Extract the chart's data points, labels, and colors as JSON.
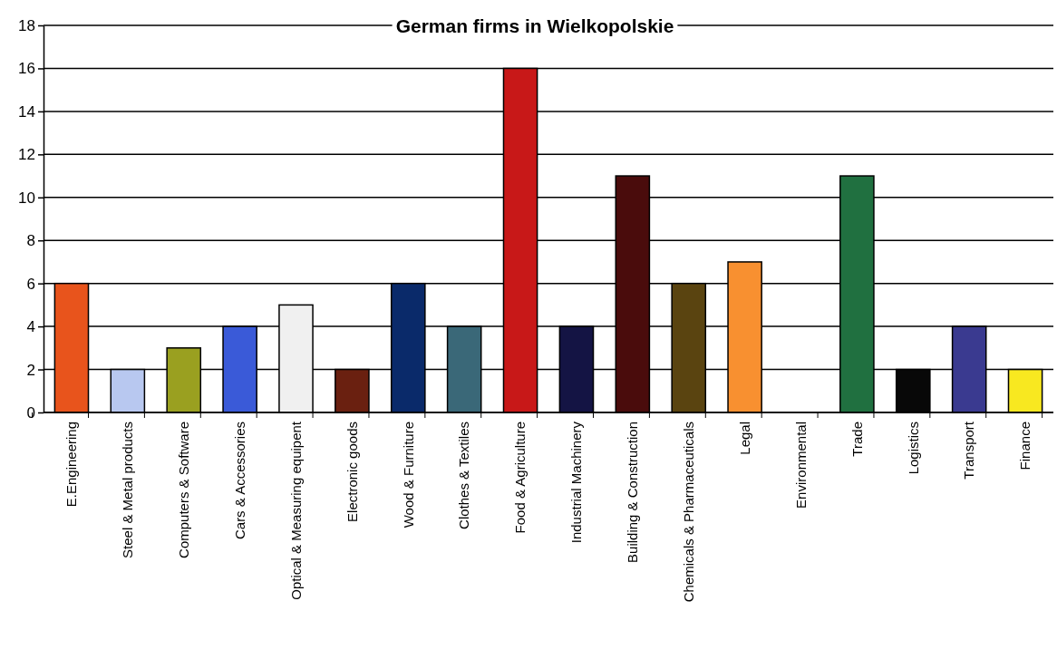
{
  "chart_data": {
    "type": "bar",
    "title": "German firms in Wielkopolskie",
    "categories": [
      "E.Engineering",
      "Steel & Metal products",
      "Computers & Software",
      "Cars & Accessories",
      "Optical & Measuring equipent",
      "Electronic goods",
      "Wood & Furniture",
      "Clothes & Textiles",
      "Food & Agriculture",
      "Industrial Machinery",
      "Building & Construction",
      "Chemicals & Pharmaceuticals",
      "Legal",
      "Environmental",
      "Trade",
      "Logistics",
      "Transport",
      "Finance"
    ],
    "values": [
      6,
      2,
      3,
      4,
      5,
      2,
      6,
      4,
      16,
      4,
      11,
      6,
      7,
      0,
      11,
      2,
      4,
      2
    ],
    "colors": [
      "#e8541c",
      "#b8c8f0",
      "#9aa020",
      "#3a5ad8",
      "#f0f0f0",
      "#6a2010",
      "#0a2a6a",
      "#3a6878",
      "#c81818",
      "#141444",
      "#4a0c0c",
      "#5a4410",
      "#f89030",
      "#888888",
      "#207040",
      "#080808",
      "#3a3a90",
      "#f8e820"
    ],
    "ylim": [
      0,
      18
    ],
    "yticks": [
      0,
      2,
      4,
      6,
      8,
      10,
      12,
      14,
      16,
      18
    ],
    "grid": "y"
  }
}
